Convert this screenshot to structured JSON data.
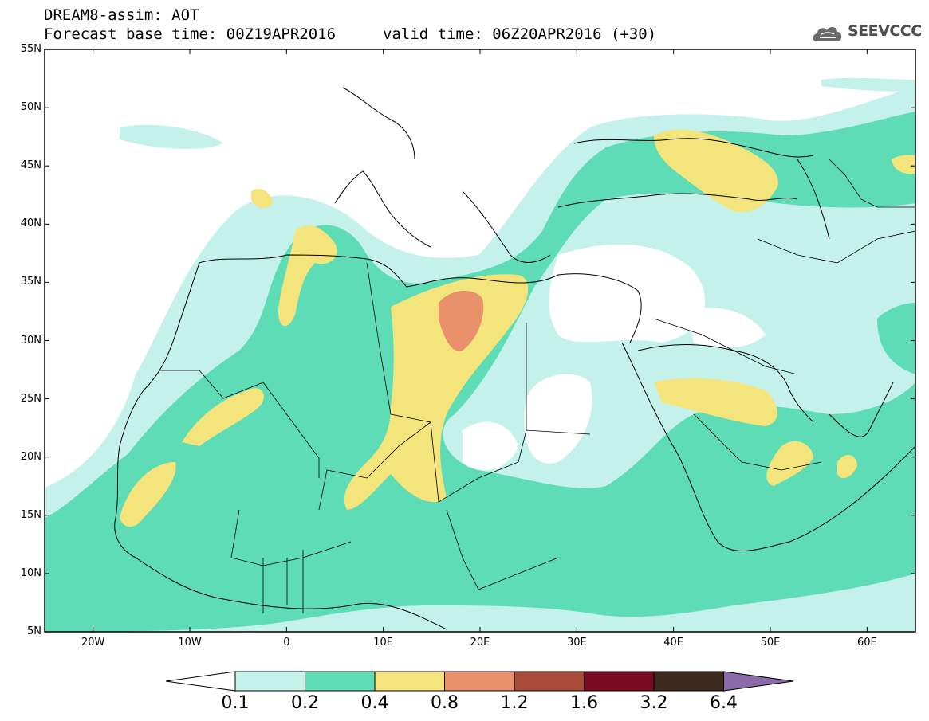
{
  "header": {
    "model_title": "DREAM8-assim: AOT",
    "base_time": "Forecast base time: 00Z19APR2016",
    "valid_time": "valid time: 06Z20APR2016 (+30)"
  },
  "logo": {
    "text": "SEEVCCC",
    "icon": "cloud-icon"
  },
  "map": {
    "lat_labels": [
      "55N",
      "50N",
      "45N",
      "40N",
      "35N",
      "30N",
      "25N",
      "20N",
      "15N",
      "10N",
      "5N"
    ],
    "lon_labels": [
      "20W",
      "10W",
      "0",
      "10E",
      "20E",
      "30E",
      "40E",
      "50E",
      "60E"
    ],
    "lat_range": [
      5,
      55
    ],
    "lon_range": [
      -25,
      65
    ]
  },
  "colorbar": {
    "labels": [
      "0.1",
      "0.2",
      "0.4",
      "0.8",
      "1.2",
      "1.6",
      "3.2",
      "6.4"
    ],
    "colors": [
      "#ffffff",
      "#c4f1e9",
      "#5ddcb6",
      "#f4e47c",
      "#e8916a",
      "#a74a3a",
      "#7a0a22",
      "#3c2a1e",
      "#8a6aa8"
    ]
  }
}
